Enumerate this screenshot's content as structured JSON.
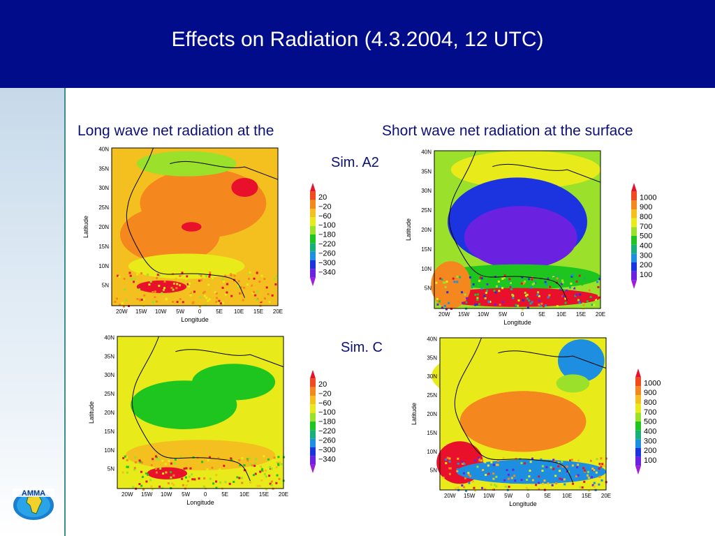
{
  "header": {
    "title": "Effects on Radiation  (4.3.2004, 12 UTC)",
    "background": "#000c8a"
  },
  "headings": {
    "longwave": "Long wave net radiation at the",
    "shortwave": "Short wave net radiation at the surface"
  },
  "sim_labels": {
    "a2": "Sim. A2",
    "c": "Sim. C"
  },
  "axes": {
    "lat_ticks": [
      "40N",
      "35N",
      "30N",
      "25N",
      "20N",
      "15N",
      "10N",
      "5N"
    ],
    "lon_ticks": [
      "20W",
      "15W",
      "10W",
      "5W",
      "0",
      "5E",
      "10E",
      "15E",
      "20E"
    ],
    "xlabel": "Longitude",
    "ylabel": "Latitude"
  },
  "legends": {
    "longwave": {
      "labels": [
        "20",
        "−20",
        "−60",
        "−100",
        "−180",
        "−220",
        "−260",
        "−300",
        "−340"
      ],
      "colors": [
        "#e8102a",
        "#f14a1e",
        "#f5871f",
        "#f4c020",
        "#e8ea1a",
        "#9be02a",
        "#1fc51f",
        "#17b07a",
        "#1e8ee0",
        "#1c34e0",
        "#6a22e0",
        "#a01cdb"
      ]
    },
    "shortwave": {
      "labels": [
        "1000",
        "900",
        "800",
        "700",
        "500",
        "400",
        "300",
        "200",
        "100"
      ],
      "colors": [
        "#e8102a",
        "#f14a1e",
        "#f5871f",
        "#f4c020",
        "#e8ea1a",
        "#9be02a",
        "#1fc51f",
        "#17b07a",
        "#1e8ee0",
        "#1c34e0",
        "#6a22e0",
        "#a01cdb"
      ]
    }
  },
  "logo": {
    "text": "AMMA"
  }
}
